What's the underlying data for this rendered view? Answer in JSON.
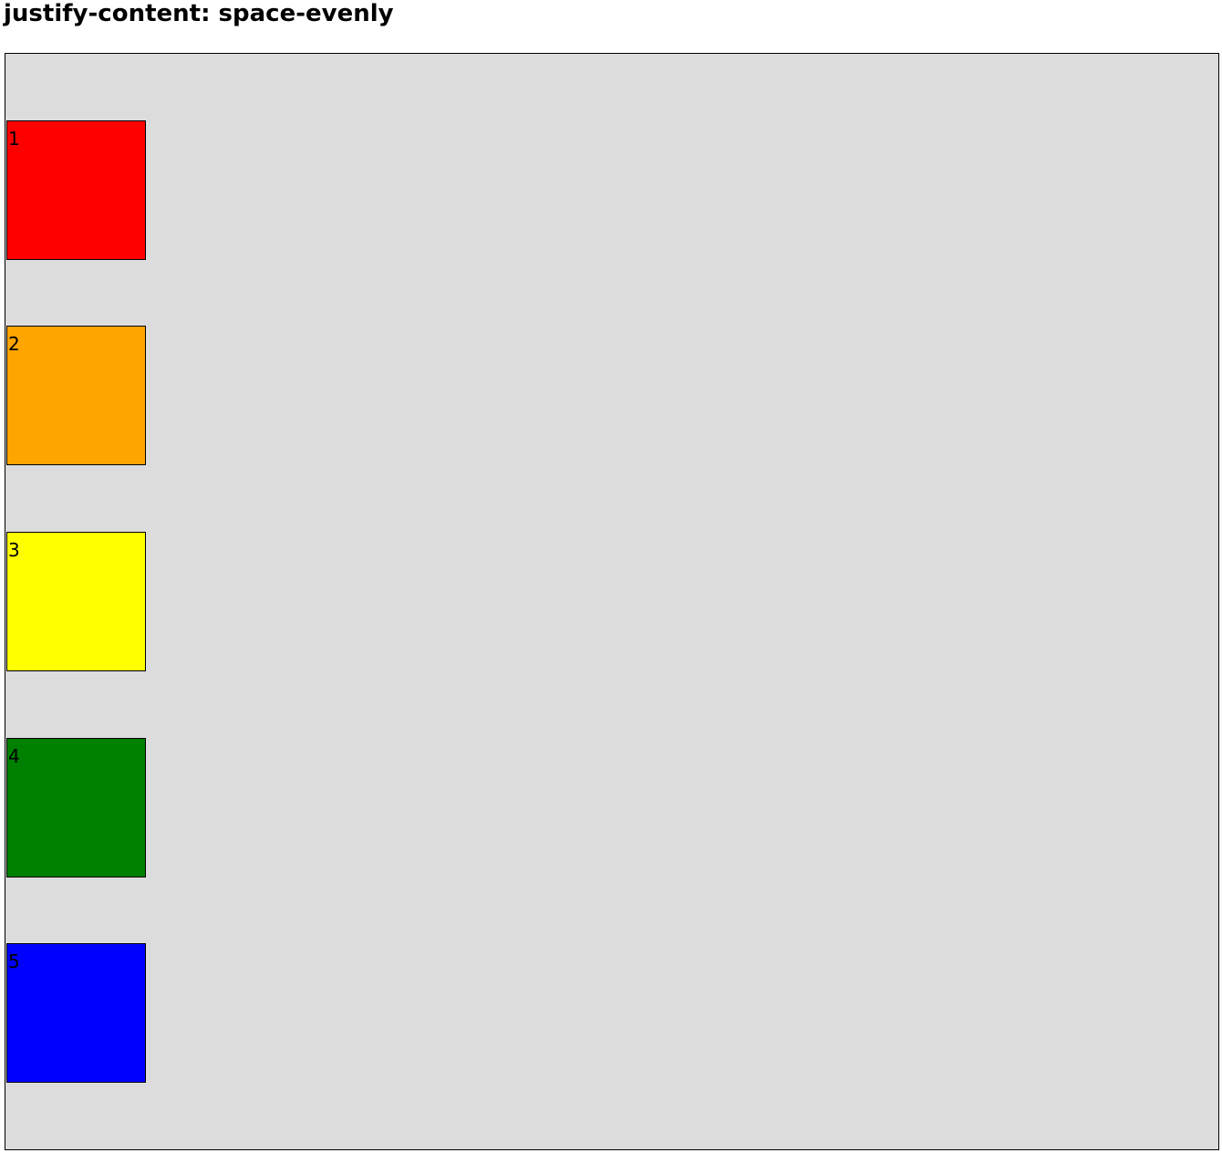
{
  "header": {
    "title": "justify-content: space-evenly"
  },
  "container": {
    "background": "#dcdcdc",
    "boxes": [
      {
        "label": "1",
        "color": "#ff0000"
      },
      {
        "label": "2",
        "color": "#ffa500"
      },
      {
        "label": "3",
        "color": "#ffff00"
      },
      {
        "label": "4",
        "color": "#008000"
      },
      {
        "label": "5",
        "color": "#0000ff"
      }
    ]
  }
}
